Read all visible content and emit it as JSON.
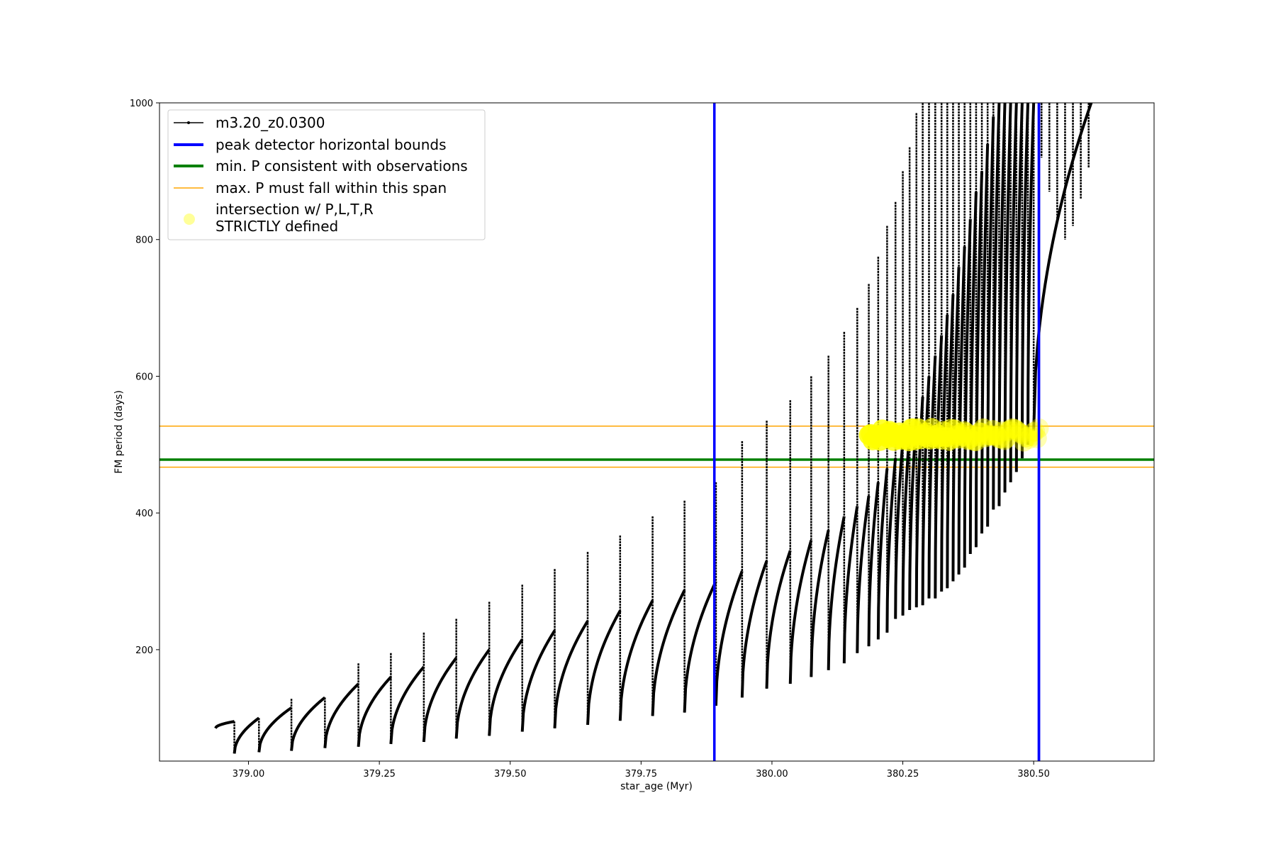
{
  "chart_data": {
    "type": "line",
    "title": "",
    "xlabel": "star_age (Myr)",
    "ylabel": "FM period (days)",
    "xlim": [
      378.83,
      380.73
    ],
    "ylim": [
      37,
      1000
    ],
    "x_ticks": [
      379.0,
      379.25,
      379.5,
      379.75,
      380.0,
      380.25,
      380.5
    ],
    "x_tick_labels": [
      "379.00",
      "379.25",
      "379.50",
      "379.75",
      "380.00",
      "380.25",
      "380.50"
    ],
    "y_ticks": [
      200,
      400,
      600,
      800,
      1000
    ],
    "y_tick_labels": [
      "200",
      "400",
      "600",
      "800",
      "1000"
    ],
    "grid": false,
    "legend_placement": "upper-left",
    "series": [
      {
        "name": "m3.20_z0.0300",
        "color": "#000000",
        "marker": "dot",
        "pulse_shape": "sawtooth",
        "start_x": 378.935,
        "end_x": 380.61,
        "pulse_starts_x": [
          378.937,
          378.973,
          379.02,
          379.082,
          379.146,
          379.21,
          379.272,
          379.335,
          379.397,
          379.46,
          379.523,
          379.585,
          379.648,
          379.71,
          379.772,
          379.833,
          379.893,
          379.943,
          379.99,
          380.035,
          380.075,
          380.108,
          380.138,
          380.163,
          380.185,
          380.203,
          380.22,
          380.236,
          380.25,
          380.263,
          380.276,
          380.288,
          380.3,
          380.312,
          380.324,
          380.335,
          380.346,
          380.357,
          380.368,
          380.379,
          380.39,
          380.401,
          380.412,
          380.423,
          380.434,
          380.445,
          380.456,
          380.467,
          380.478,
          380.489,
          380.5
        ],
        "pulse_floor_y": [
          85,
          48,
          50,
          52,
          56,
          58,
          62,
          65,
          70,
          74,
          80,
          85,
          90,
          96,
          103,
          108,
          118,
          130,
          143,
          150,
          160,
          170,
          180,
          195,
          205,
          215,
          225,
          245,
          250,
          258,
          262,
          265,
          275,
          275,
          285,
          290,
          300,
          310,
          320,
          340,
          350,
          370,
          380,
          405,
          410,
          430,
          445,
          460,
          480,
          500,
          520
        ],
        "pulse_peak_y": [
          95,
          100,
          115,
          130,
          150,
          160,
          175,
          188,
          200,
          215,
          228,
          242,
          257,
          272,
          287,
          300,
          315,
          330,
          345,
          360,
          375,
          395,
          410,
          425,
          445,
          465,
          480,
          505,
          520,
          540,
          570,
          600,
          630,
          660,
          690,
          720,
          760,
          790,
          830,
          870,
          900,
          940,
          980,
          1000,
          1000,
          1000,
          1000,
          1000,
          1000,
          1000,
          1000
        ],
        "spike_top_y": [
          95,
          100,
          128,
          130,
          180,
          195,
          225,
          245,
          270,
          295,
          318,
          343,
          367,
          395,
          418,
          445,
          505,
          535,
          565,
          600,
          630,
          665,
          700,
          735,
          775,
          820,
          855,
          900,
          935,
          985,
          1000,
          1000,
          1000,
          1000,
          1000,
          1000,
          1000,
          1000,
          1000,
          1000,
          1000,
          1000,
          1000,
          1000,
          1000,
          1000,
          1000,
          1000,
          1000,
          1000,
          1000
        ],
        "decay_tails": [
          {
            "x": 380.5,
            "y_start": 1000,
            "y_end": 960
          },
          {
            "x": 380.515,
            "y_start": 1000,
            "y_end": 920
          },
          {
            "x": 380.53,
            "y_start": 1000,
            "y_end": 870
          },
          {
            "x": 380.545,
            "y_start": 1000,
            "y_end": 830
          },
          {
            "x": 380.56,
            "y_start": 1000,
            "y_end": 800
          },
          {
            "x": 380.575,
            "y_start": 1000,
            "y_end": 820
          },
          {
            "x": 380.59,
            "y_start": 1000,
            "y_end": 860
          },
          {
            "x": 380.605,
            "y_start": 1000,
            "y_end": 905
          }
        ]
      },
      {
        "name": "intersection w/ P,L,T,R\nSTRICTLY defined",
        "color": "#ffff00",
        "marker": "circle",
        "x_range": [
          380.185,
          380.51
        ],
        "y_range": [
          495,
          530
        ]
      }
    ],
    "reference_lines": [
      {
        "name": "peak detector horizontal bounds",
        "orientation": "vertical",
        "color": "#0000ff",
        "values": [
          379.89,
          380.51
        ]
      },
      {
        "name": "min. P consistent with observations",
        "orientation": "horizontal",
        "color": "#008000",
        "values": [
          478
        ]
      },
      {
        "name": "max. P must fall within this span",
        "orientation": "horizontal",
        "color": "#ffa500",
        "values": [
          467,
          527
        ]
      }
    ],
    "legend": [
      {
        "label": "m3.20_z0.0300",
        "color": "#000000",
        "style": "line-marker"
      },
      {
        "label": "peak detector horizontal bounds",
        "color": "#0000ff",
        "style": "thick-line"
      },
      {
        "label": "min. P consistent with observations",
        "color": "#008000",
        "style": "thick-line"
      },
      {
        "label": "max. P must fall within this span",
        "color": "#ffa500",
        "style": "thin-line"
      },
      {
        "label_lines": [
          "intersection w/ P,L,T,R",
          "STRICTLY defined"
        ],
        "color": "#ffff99",
        "style": "circle"
      }
    ]
  }
}
